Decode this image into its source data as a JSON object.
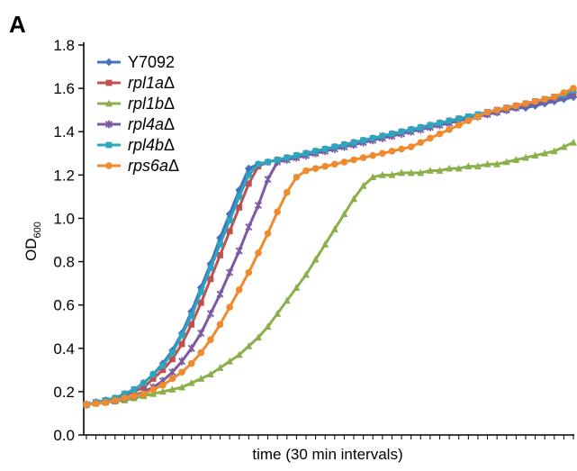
{
  "panel_label": "A",
  "chart_data": {
    "type": "line",
    "title": "",
    "xlabel": "time (30 min intervals)",
    "ylabel_main": "OD",
    "ylabel_sub": "600",
    "ylim": [
      0.0,
      1.8
    ],
    "yticks": [
      "0.0",
      "0.2",
      "0.4",
      "0.6",
      "0.8",
      "1.0",
      "1.2",
      "1.4",
      "1.6",
      "1.8"
    ],
    "x_count": 52,
    "grid": false,
    "legend_position": "top-left",
    "series": [
      {
        "name": "Y7092",
        "italic": false,
        "color": "#4472c4",
        "marker": "diamond",
        "values": [
          0.14,
          0.15,
          0.16,
          0.17,
          0.19,
          0.21,
          0.24,
          0.28,
          0.33,
          0.39,
          0.47,
          0.57,
          0.68,
          0.79,
          0.91,
          1.02,
          1.13,
          1.23,
          1.25,
          1.26,
          1.27,
          1.28,
          1.29,
          1.3,
          1.31,
          1.32,
          1.33,
          1.34,
          1.35,
          1.36,
          1.37,
          1.38,
          1.39,
          1.4,
          1.41,
          1.42,
          1.43,
          1.44,
          1.45,
          1.46,
          1.46,
          1.47,
          1.48,
          1.49,
          1.5,
          1.51,
          1.51,
          1.52,
          1.53,
          1.54,
          1.55,
          1.56
        ]
      },
      {
        "name": "rpl1a",
        "italic": true,
        "color": "#c0504d",
        "marker": "square",
        "values": [
          0.14,
          0.15,
          0.16,
          0.17,
          0.18,
          0.2,
          0.22,
          0.26,
          0.3,
          0.35,
          0.42,
          0.51,
          0.61,
          0.72,
          0.83,
          0.94,
          1.05,
          1.16,
          1.24,
          1.26,
          1.27,
          1.28,
          1.29,
          1.3,
          1.31,
          1.32,
          1.33,
          1.34,
          1.35,
          1.36,
          1.37,
          1.38,
          1.39,
          1.4,
          1.41,
          1.42,
          1.43,
          1.44,
          1.45,
          1.46,
          1.47,
          1.48,
          1.49,
          1.5,
          1.51,
          1.52,
          1.53,
          1.54,
          1.55,
          1.56,
          1.57,
          1.58
        ]
      },
      {
        "name": "rpl1b",
        "italic": true,
        "color": "#8bb04b",
        "marker": "triangle",
        "values": [
          0.14,
          0.145,
          0.15,
          0.155,
          0.16,
          0.17,
          0.18,
          0.19,
          0.2,
          0.21,
          0.22,
          0.24,
          0.26,
          0.28,
          0.31,
          0.34,
          0.37,
          0.41,
          0.45,
          0.5,
          0.56,
          0.62,
          0.68,
          0.74,
          0.81,
          0.88,
          0.95,
          1.02,
          1.09,
          1.15,
          1.19,
          1.2,
          1.2,
          1.21,
          1.21,
          1.21,
          1.22,
          1.22,
          1.23,
          1.23,
          1.24,
          1.24,
          1.25,
          1.25,
          1.26,
          1.27,
          1.28,
          1.29,
          1.3,
          1.31,
          1.33,
          1.35
        ]
      },
      {
        "name": "rpl4a",
        "italic": true,
        "color": "#7b59a3",
        "marker": "star",
        "values": [
          0.14,
          0.15,
          0.155,
          0.16,
          0.17,
          0.18,
          0.2,
          0.22,
          0.25,
          0.29,
          0.34,
          0.4,
          0.47,
          0.56,
          0.65,
          0.75,
          0.85,
          0.96,
          1.06,
          1.18,
          1.26,
          1.27,
          1.28,
          1.29,
          1.3,
          1.31,
          1.32,
          1.33,
          1.34,
          1.35,
          1.36,
          1.37,
          1.38,
          1.39,
          1.4,
          1.41,
          1.42,
          1.43,
          1.44,
          1.45,
          1.46,
          1.47,
          1.48,
          1.49,
          1.5,
          1.51,
          1.52,
          1.53,
          1.54,
          1.55,
          1.56,
          1.57
        ]
      },
      {
        "name": "rpl4b",
        "italic": true,
        "color": "#2fa5bd",
        "marker": "square",
        "values": [
          0.14,
          0.15,
          0.16,
          0.17,
          0.19,
          0.21,
          0.24,
          0.28,
          0.32,
          0.38,
          0.46,
          0.55,
          0.66,
          0.77,
          0.88,
          0.99,
          1.1,
          1.2,
          1.25,
          1.26,
          1.27,
          1.28,
          1.29,
          1.3,
          1.31,
          1.32,
          1.33,
          1.34,
          1.35,
          1.36,
          1.37,
          1.38,
          1.39,
          1.4,
          1.41,
          1.42,
          1.43,
          1.44,
          1.45,
          1.46,
          1.47,
          1.48,
          1.49,
          1.5,
          1.51,
          1.52,
          1.53,
          1.54,
          1.55,
          1.56,
          1.57,
          1.59
        ]
      },
      {
        "name": "rps6a",
        "italic": true,
        "color": "#f08a2e",
        "marker": "circle",
        "values": [
          0.14,
          0.145,
          0.15,
          0.16,
          0.17,
          0.18,
          0.19,
          0.21,
          0.23,
          0.26,
          0.29,
          0.33,
          0.38,
          0.44,
          0.51,
          0.59,
          0.67,
          0.75,
          0.84,
          0.93,
          1.03,
          1.12,
          1.19,
          1.22,
          1.23,
          1.24,
          1.25,
          1.26,
          1.27,
          1.28,
          1.29,
          1.3,
          1.31,
          1.32,
          1.33,
          1.35,
          1.37,
          1.39,
          1.41,
          1.43,
          1.45,
          1.47,
          1.49,
          1.5,
          1.51,
          1.52,
          1.53,
          1.54,
          1.55,
          1.56,
          1.58,
          1.6
        ]
      }
    ]
  }
}
